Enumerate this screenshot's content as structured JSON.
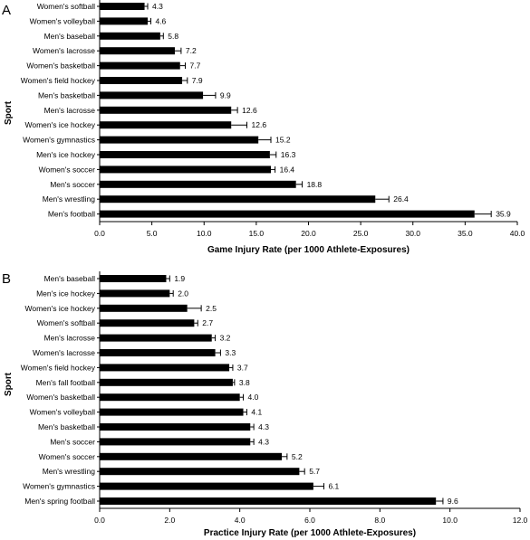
{
  "chart_data": [
    {
      "panel": "A",
      "type": "bar",
      "orientation": "horizontal",
      "xlabel": "Game Injury Rate (per 1000 Athlete-Exposures)",
      "ylabel": "Sport",
      "xlim": [
        0,
        40
      ],
      "xticks": [
        "0.0",
        "5.0",
        "10.0",
        "15.0",
        "20.0",
        "25.0",
        "30.0",
        "35.0",
        "40.0"
      ],
      "categories": [
        "Women's softball",
        "Women's volleyball",
        "Men's baseball",
        "Women's lacrosse",
        "Women's basketball",
        "Women's field hockey",
        "Men's basketball",
        "Men's lacrosse",
        "Women's ice hockey",
        "Women's gymnastics",
        "Men's ice hockey",
        "Women's soccer",
        "Men's soccer",
        "Men's wrestling",
        "Men's football"
      ],
      "values": [
        4.3,
        4.6,
        5.8,
        7.2,
        7.7,
        7.9,
        9.9,
        12.6,
        12.6,
        15.2,
        16.3,
        16.4,
        18.8,
        26.4,
        35.9
      ],
      "labels": [
        "4.3",
        "4.6",
        "5.8",
        "7.2",
        "7.7",
        "7.9",
        "9.9",
        "12.6",
        "12.6",
        "15.2",
        "16.3",
        "16.4",
        "18.8",
        "26.4",
        "35.9"
      ],
      "errors": [
        0.3,
        0.3,
        0.3,
        0.6,
        0.5,
        0.5,
        1.2,
        0.6,
        1.5,
        1.2,
        0.6,
        0.4,
        0.6,
        1.3,
        1.6
      ],
      "grid": false
    },
    {
      "panel": "B",
      "type": "bar",
      "orientation": "horizontal",
      "xlabel": "Practice Injury Rate (per 1000 Athlete-Exposures)",
      "ylabel": "Sport",
      "xlim": [
        0,
        12
      ],
      "xticks": [
        "0.0",
        "2.0",
        "4.0",
        "6.0",
        "8.0",
        "10.0",
        "12.0"
      ],
      "categories": [
        "Men's baseball",
        "Men's ice hockey",
        "Women's ice hockey",
        "Women's softball",
        "Men's lacrosse",
        "Women's lacrosse",
        "Women's field hockey",
        "Men's fall football",
        "Women's basketball",
        "Women's volleyball",
        "Men's basketball",
        "Men's soccer",
        "Women's soccer",
        "Men's wrestling",
        "Women's gymnastics",
        "Men's spring football"
      ],
      "values": [
        1.9,
        2.0,
        2.5,
        2.7,
        3.2,
        3.3,
        3.7,
        3.8,
        4.0,
        4.1,
        4.3,
        4.3,
        5.2,
        5.7,
        6.1,
        9.6
      ],
      "labels": [
        "1.9",
        "2.0",
        "2.5",
        "2.7",
        "3.2",
        "3.3",
        "3.7",
        "3.8",
        "4.0",
        "4.1",
        "4.3",
        "4.3",
        "5.2",
        "5.7",
        "6.1",
        "9.6"
      ],
      "errors": [
        0.1,
        0.1,
        0.4,
        0.1,
        0.1,
        0.15,
        0.1,
        0.05,
        0.1,
        0.1,
        0.1,
        0.1,
        0.15,
        0.15,
        0.3,
        0.2
      ],
      "grid": false
    }
  ]
}
